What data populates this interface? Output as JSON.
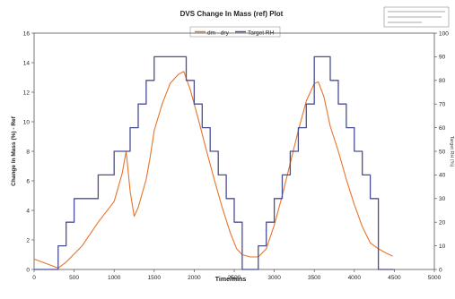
{
  "chart_data": {
    "type": "line",
    "title": "DVS Change In Mass (ref) Plot",
    "xlabel": "Time/mins",
    "ylabel": "Change In Mass (%) - Ref",
    "y2label": "Target RH (%)",
    "xlim": [
      0,
      5000
    ],
    "ylim": [
      0,
      16
    ],
    "y2lim": [
      0,
      100
    ],
    "xticks": [
      0,
      500,
      1000,
      1500,
      2000,
      2500,
      3000,
      3500,
      4000,
      4500,
      5000
    ],
    "yticks": [
      0,
      2,
      4,
      6,
      8,
      10,
      12,
      14,
      16
    ],
    "y2ticks": [
      0,
      10,
      20,
      30,
      40,
      50,
      60,
      70,
      80,
      90,
      100
    ],
    "grid": false,
    "legend_placement": "top-center",
    "series": [
      {
        "name": "dm - dry",
        "axis": "left",
        "color": "#e8742a",
        "x": [
          0,
          150,
          300,
          400,
          600,
          800,
          1000,
          1100,
          1150,
          1200,
          1250,
          1300,
          1400,
          1450,
          1500,
          1600,
          1700,
          1800,
          1870,
          1950,
          2050,
          2150,
          2250,
          2350,
          2450,
          2530,
          2600,
          2700,
          2800,
          2900,
          3000,
          3100,
          3200,
          3300,
          3400,
          3500,
          3550,
          3620,
          3700,
          3800,
          3900,
          4000,
          4100,
          4200,
          4300,
          4400,
          4480
        ],
        "y": [
          0.7,
          0.4,
          0.1,
          0.5,
          1.6,
          3.2,
          4.6,
          6.5,
          8.0,
          5.3,
          3.6,
          4.2,
          6.1,
          7.6,
          9.4,
          11.2,
          12.6,
          13.2,
          13.4,
          12.2,
          10.2,
          8.1,
          6.1,
          4.2,
          2.5,
          1.4,
          1.0,
          0.85,
          0.85,
          1.4,
          3.0,
          5.0,
          7.2,
          9.4,
          11.4,
          12.6,
          12.7,
          11.7,
          9.7,
          8.0,
          6.1,
          4.4,
          2.9,
          1.8,
          1.4,
          1.1,
          0.9
        ]
      },
      {
        "name": "Target RH",
        "axis": "right",
        "color": "#4a4f94",
        "x": [
          0,
          300,
          300,
          400,
          400,
          500,
          500,
          800,
          800,
          1000,
          1000,
          1200,
          1200,
          1300,
          1300,
          1400,
          1400,
          1500,
          1500,
          1900,
          1900,
          2000,
          2000,
          2100,
          2100,
          2200,
          2200,
          2300,
          2300,
          2400,
          2400,
          2500,
          2500,
          2600,
          2600,
          2800,
          2800,
          2900,
          2900,
          3000,
          3000,
          3100,
          3100,
          3200,
          3200,
          3300,
          3300,
          3400,
          3400,
          3500,
          3500,
          3700,
          3700,
          3800,
          3800,
          3900,
          3900,
          4000,
          4000,
          4100,
          4100,
          4200,
          4200,
          4300,
          4300,
          4500
        ],
        "y": [
          0,
          0,
          10,
          10,
          20,
          20,
          30,
          30,
          40,
          40,
          50,
          50,
          60,
          60,
          70,
          70,
          80,
          80,
          90,
          90,
          80,
          80,
          70,
          70,
          60,
          60,
          50,
          50,
          40,
          40,
          30,
          30,
          20,
          20,
          0,
          0,
          10,
          10,
          20,
          20,
          30,
          30,
          40,
          40,
          50,
          50,
          60,
          60,
          70,
          70,
          90,
          90,
          80,
          80,
          70,
          70,
          60,
          60,
          50,
          50,
          40,
          40,
          30,
          30,
          0,
          0
        ]
      }
    ]
  }
}
